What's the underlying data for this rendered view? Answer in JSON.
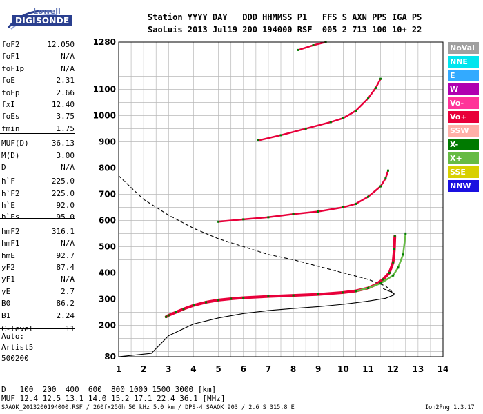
{
  "logo": {
    "line1": "Lowell",
    "line2": "DIGISONDE"
  },
  "header": {
    "labels": "Station YYYY DAY   DDD HHMMSS P1   FFS S AXN PPS IGA PS",
    "values": "SaoLuis 2013 Jul19 200 194000 RSF  005 2 713 100 10+ 22"
  },
  "params": [
    {
      "name": "foF2",
      "value": "12.050"
    },
    {
      "name": "foF1",
      "value": "N/A"
    },
    {
      "name": "foF1p",
      "value": "N/A"
    },
    {
      "name": "foE",
      "value": "2.31"
    },
    {
      "name": "foEp",
      "value": "2.66"
    },
    {
      "name": "fxI",
      "value": "12.40"
    },
    {
      "name": "foEs",
      "value": "3.75"
    },
    {
      "name": "fmin",
      "value": "1.75"
    },
    {
      "name": "MUF(D)",
      "value": "36.13"
    },
    {
      "name": "M(D)",
      "value": "3.00"
    },
    {
      "name": "D",
      "value": "N/A"
    },
    {
      "name": "h`F",
      "value": "225.0"
    },
    {
      "name": "h`F2",
      "value": "225.0"
    },
    {
      "name": "h`E",
      "value": "92.0"
    },
    {
      "name": "h`Es",
      "value": "95.0"
    },
    {
      "name": "hmF2",
      "value": "316.1"
    },
    {
      "name": "hmF1",
      "value": "N/A"
    },
    {
      "name": "hmE",
      "value": "92.7"
    },
    {
      "name": "yF2",
      "value": "87.4"
    },
    {
      "name": "yF1",
      "value": "N/A"
    },
    {
      "name": "yE",
      "value": "2.7"
    },
    {
      "name": "B0",
      "value": "86.2"
    },
    {
      "name": "B1",
      "value": "2.24"
    },
    {
      "name": "C-level",
      "value": "11"
    }
  ],
  "auto": {
    "line1": "Auto:",
    "line2": "Artist5",
    "line3": "500200"
  },
  "legend": [
    {
      "label": "NoVal",
      "color": "#a0a0a0"
    },
    {
      "label": "NNE",
      "color": "#00e5ee"
    },
    {
      "label": "E",
      "color": "#33aaff"
    },
    {
      "label": "W",
      "color": "#b000b0"
    },
    {
      "label": "Vo-",
      "color": "#ff3399"
    },
    {
      "label": "Vo+",
      "color": "#e8003a"
    },
    {
      "label": "SSW",
      "color": "#ffb0a8"
    },
    {
      "label": "X-",
      "color": "#007a00"
    },
    {
      "label": "X+",
      "color": "#66bb44"
    },
    {
      "label": "SSE",
      "color": "#d8d000"
    },
    {
      "label": "NNW",
      "color": "#1a10e0"
    }
  ],
  "muf_table": {
    "d_label": "D",
    "d_values": "   100  200  400  600  800 1000 1500 3000 [km]",
    "muf_label": "MUF",
    "muf_values": " 12.4 12.5 13.1 14.0 15.2 17.1 22.4 36.1 [MHz]"
  },
  "footer": {
    "left": "SAAOK_2013200194000.RSF / 260fx256h 50 kHz 5.0 km / DPS-4 SAAOK 903 / 2.6 S 315.8 E",
    "right": "Ion2Png 1.3.17"
  },
  "chart_data": {
    "type": "scatter",
    "x_ticks": [
      1,
      2,
      3,
      4,
      5,
      6,
      7,
      8,
      9,
      10,
      11,
      12,
      13,
      14
    ],
    "y_ticks": [
      80,
      200,
      300,
      400,
      500,
      600,
      700,
      800,
      900,
      1000,
      1100,
      1280
    ],
    "xlim": [
      1,
      14
    ],
    "ylim": [
      80,
      1280
    ],
    "grid": true,
    "legend_placement": "right",
    "traces": [
      {
        "mode": "O",
        "color": "#e8003a",
        "points": [
          [
            2.9,
            232
          ],
          [
            3.0,
            238
          ],
          [
            3.3,
            250
          ],
          [
            3.6,
            262
          ],
          [
            4.0,
            276
          ],
          [
            4.5,
            288
          ],
          [
            5.0,
            296
          ],
          [
            5.5,
            301
          ],
          [
            6.0,
            305
          ],
          [
            7.0,
            310
          ],
          [
            8.0,
            314
          ],
          [
            9.0,
            318
          ],
          [
            10.0,
            325
          ],
          [
            10.5,
            331
          ],
          [
            11.0,
            342
          ],
          [
            11.3,
            355
          ],
          [
            11.6,
            375
          ],
          [
            11.85,
            400
          ],
          [
            12.0,
            440
          ],
          [
            12.05,
            490
          ],
          [
            12.07,
            540
          ]
        ]
      },
      {
        "mode": "X",
        "color": "#66bb44",
        "points": [
          [
            10.5,
            330
          ],
          [
            11.0,
            342
          ],
          [
            11.5,
            360
          ],
          [
            12.0,
            390
          ],
          [
            12.2,
            420
          ],
          [
            12.4,
            470
          ],
          [
            12.5,
            550
          ]
        ]
      },
      {
        "mode": "2F",
        "color": "#e8003a",
        "points": [
          [
            5.0,
            595
          ],
          [
            6.0,
            604
          ],
          [
            7.0,
            612
          ],
          [
            8.0,
            624
          ],
          [
            9.0,
            634
          ],
          [
            10.0,
            650
          ],
          [
            10.5,
            663
          ],
          [
            11.0,
            690
          ],
          [
            11.5,
            730
          ],
          [
            11.7,
            760
          ],
          [
            11.8,
            790
          ]
        ]
      },
      {
        "mode": "3F",
        "color": "#e8003a",
        "points": [
          [
            6.6,
            905
          ],
          [
            7.5,
            925
          ],
          [
            8.5,
            950
          ],
          [
            9.5,
            975
          ],
          [
            10.0,
            990
          ],
          [
            10.5,
            1018
          ],
          [
            11.0,
            1065
          ],
          [
            11.3,
            1105
          ],
          [
            11.5,
            1140
          ]
        ]
      },
      {
        "mode": "4F",
        "color": "#e8003a",
        "points": [
          [
            8.2,
            1250
          ],
          [
            8.8,
            1268
          ],
          [
            9.3,
            1280
          ]
        ]
      }
    ],
    "profile_solid": [
      [
        1.0,
        80
      ],
      [
        2.31,
        93
      ],
      [
        3.0,
        160
      ],
      [
        4.0,
        205
      ],
      [
        5.0,
        228
      ],
      [
        6.0,
        245
      ],
      [
        7.0,
        256
      ],
      [
        8.0,
        264
      ],
      [
        9.0,
        271
      ],
      [
        10.0,
        280
      ],
      [
        11.0,
        292
      ],
      [
        11.7,
        303
      ],
      [
        12.05,
        316
      ],
      [
        11.95,
        326
      ],
      [
        11.6,
        340
      ]
    ],
    "profile_dashed": [
      [
        1.0,
        770
      ],
      [
        2.0,
        680
      ],
      [
        3.0,
        620
      ],
      [
        4.0,
        570
      ],
      [
        5.0,
        530
      ],
      [
        6.0,
        500
      ],
      [
        7.0,
        470
      ],
      [
        8.0,
        450
      ],
      [
        9.0,
        425
      ],
      [
        10.0,
        400
      ],
      [
        11.0,
        375
      ],
      [
        11.7,
        350
      ],
      [
        12.05,
        320
      ]
    ]
  }
}
